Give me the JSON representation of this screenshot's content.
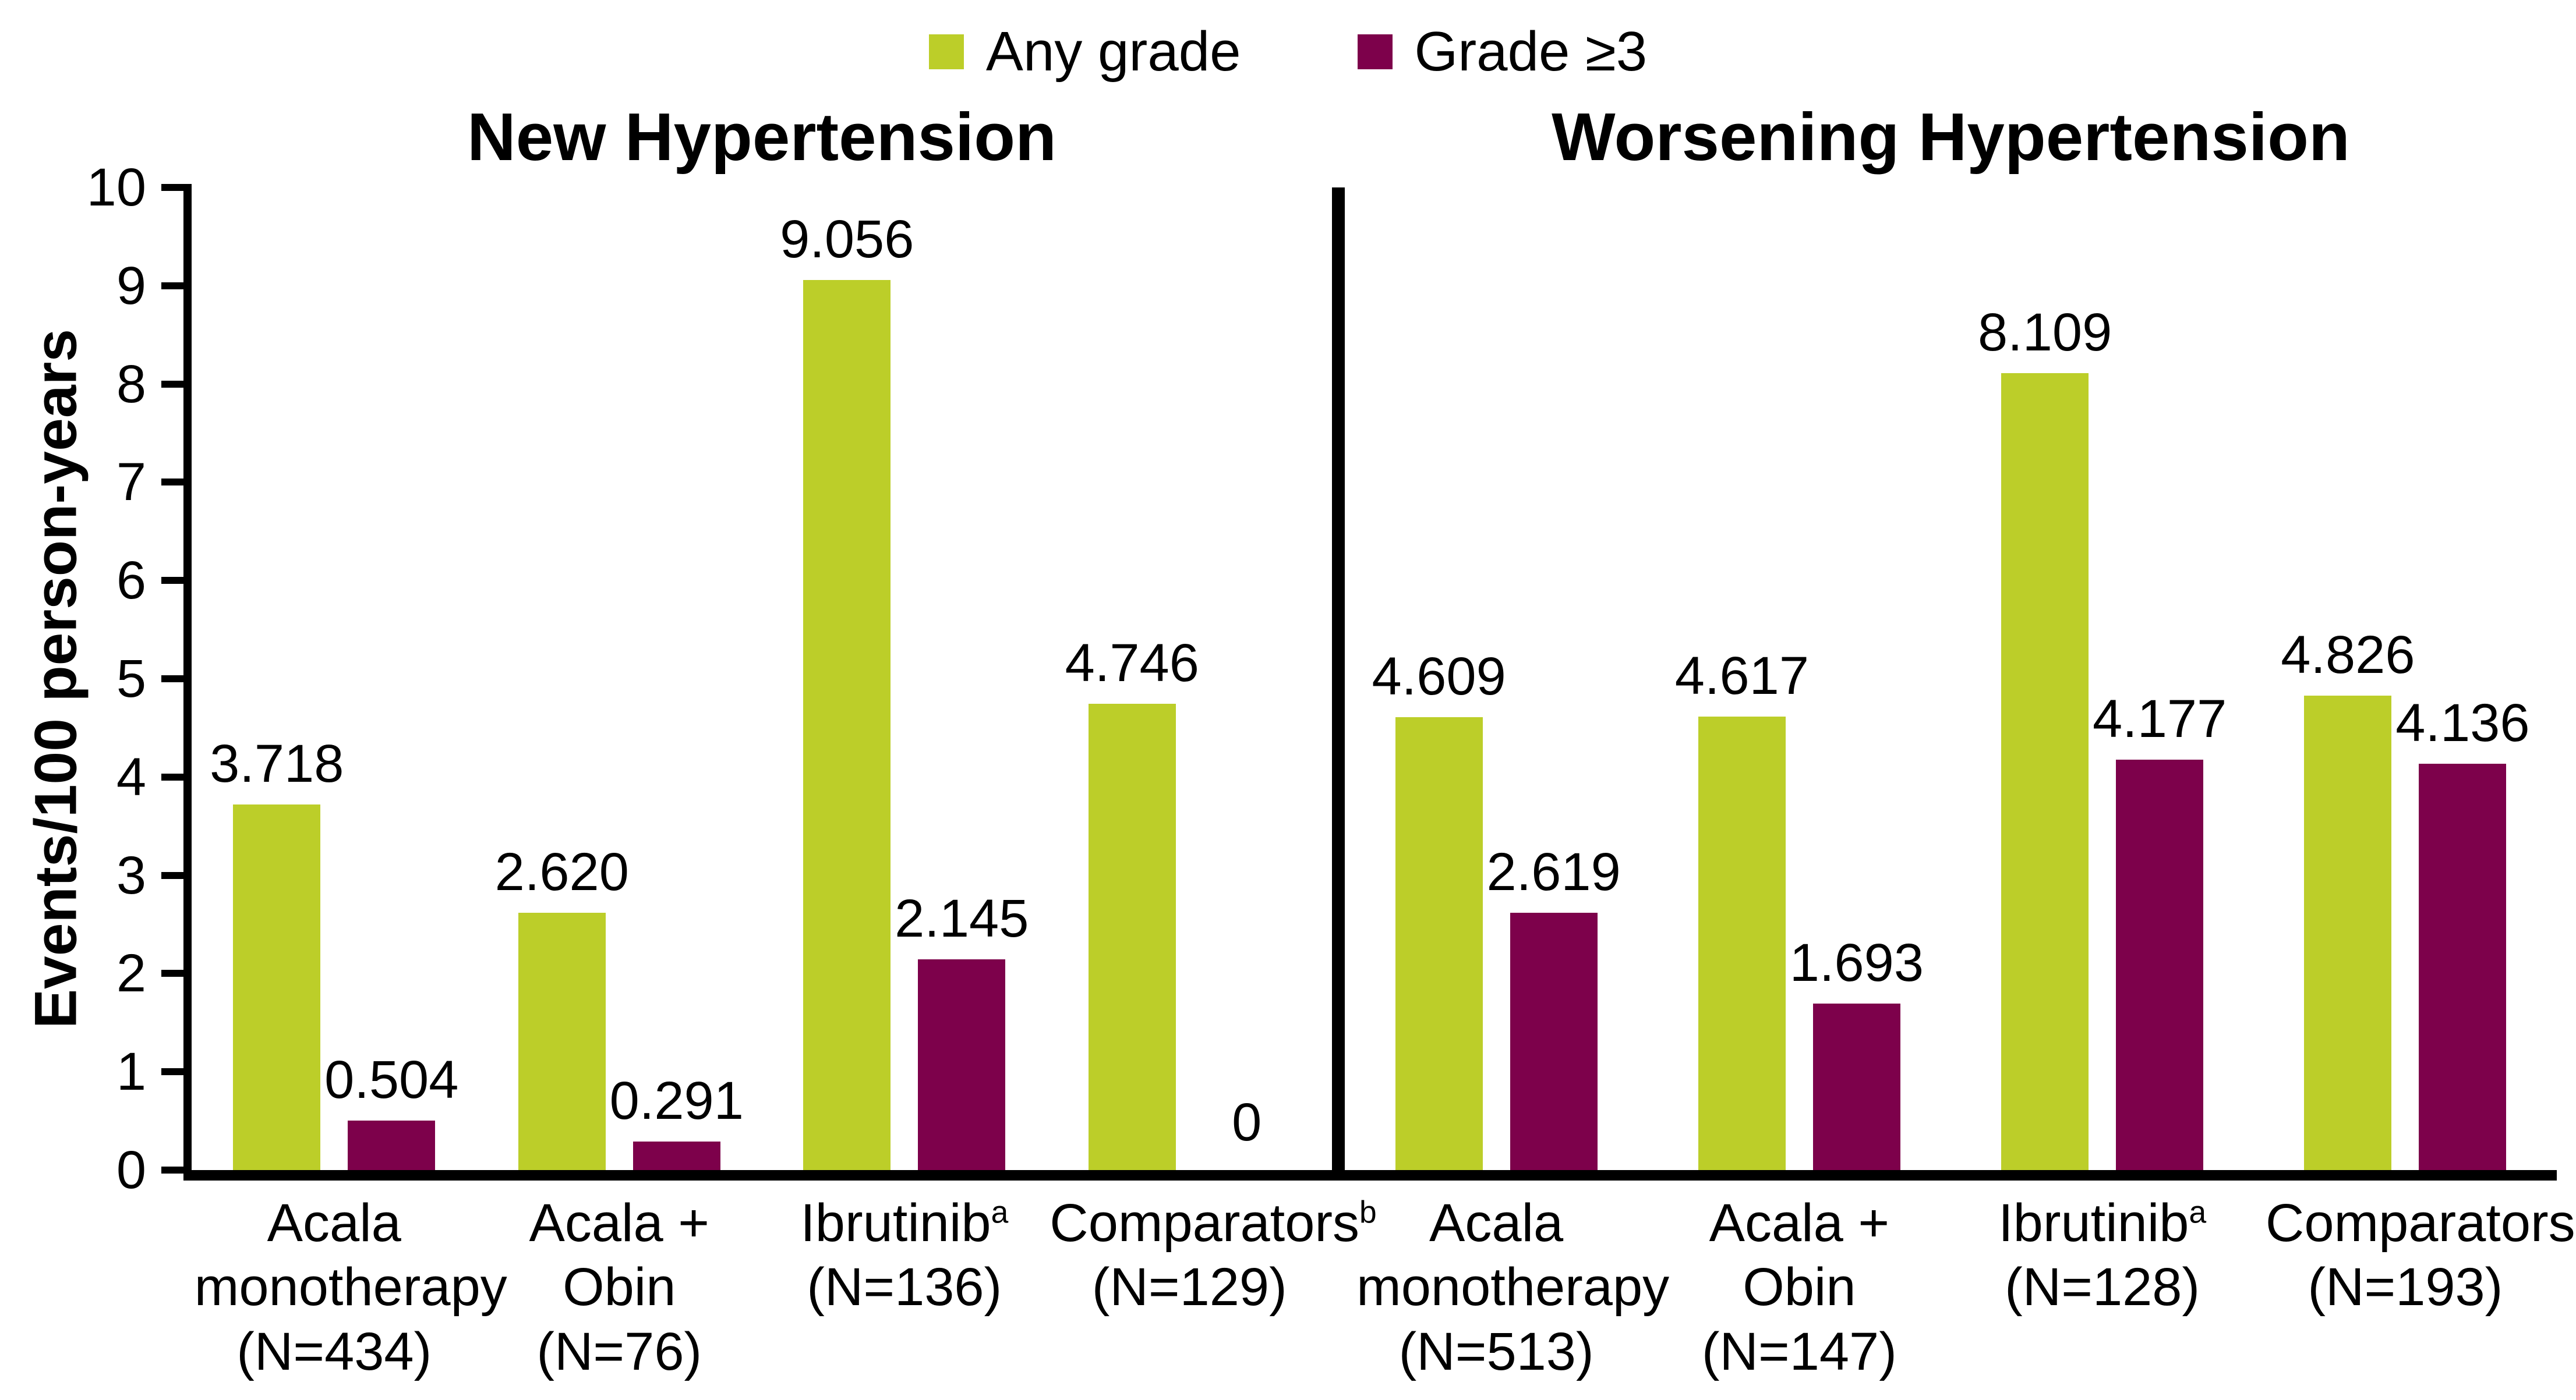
{
  "legend": {
    "items": [
      {
        "label": "Any grade",
        "color": "#bcce29"
      },
      {
        "label": "Grade ≥3",
        "color": "#7d014b"
      }
    ]
  },
  "y_axis": {
    "label": "Events/100 person-years",
    "min": 0,
    "max": 10,
    "tick_step": 1,
    "ticks": [
      0,
      1,
      2,
      3,
      4,
      5,
      6,
      7,
      8,
      9,
      10
    ]
  },
  "chart_data": {
    "type": "bar",
    "grid": false,
    "legend_position": "top-center",
    "ylim": [
      0,
      10
    ],
    "ylabel": "Events/100 person-years",
    "series": [
      {
        "key": "any_grade",
        "name": "Any grade",
        "color": "#bcce29"
      },
      {
        "key": "grade_ge3",
        "name": "Grade ≥3",
        "color": "#7d014b"
      }
    ],
    "panels": [
      {
        "title": "New Hypertension",
        "categories": [
          {
            "label_lines": [
              "Acala",
              "monotherapy",
              "(N=434)"
            ],
            "values": {
              "any_grade": 3.718,
              "grade_ge3": 0.504
            },
            "value_labels": {
              "any_grade": "3.718",
              "grade_ge3": "0.504"
            }
          },
          {
            "label_lines": [
              "Acala +",
              "Obin",
              "(N=76)"
            ],
            "values": {
              "any_grade": 2.62,
              "grade_ge3": 0.291
            },
            "value_labels": {
              "any_grade": "2.620",
              "grade_ge3": "0.291"
            }
          },
          {
            "label_lines": [
              "Ibrutinib^a",
              "(N=136)"
            ],
            "values": {
              "any_grade": 9.056,
              "grade_ge3": 2.145
            },
            "value_labels": {
              "any_grade": "9.056",
              "grade_ge3": "2.145"
            }
          },
          {
            "label_lines": [
              "Comparators^b",
              "(N=129)"
            ],
            "values": {
              "any_grade": 4.746,
              "grade_ge3": 0
            },
            "value_labels": {
              "any_grade": "4.746",
              "grade_ge3": "0"
            }
          }
        ]
      },
      {
        "title": "Worsening Hypertension",
        "categories": [
          {
            "label_lines": [
              "Acala",
              "monotherapy",
              "(N=513)"
            ],
            "values": {
              "any_grade": 4.609,
              "grade_ge3": 2.619
            },
            "value_labels": {
              "any_grade": "4.609",
              "grade_ge3": "2.619"
            }
          },
          {
            "label_lines": [
              "Acala +",
              "Obin",
              "(N=147)"
            ],
            "values": {
              "any_grade": 4.617,
              "grade_ge3": 1.693
            },
            "value_labels": {
              "any_grade": "4.617",
              "grade_ge3": "1.693"
            }
          },
          {
            "label_lines": [
              "Ibrutinib^a",
              "(N=128)"
            ],
            "values": {
              "any_grade": 8.109,
              "grade_ge3": 4.177
            },
            "value_labels": {
              "any_grade": "8.109",
              "grade_ge3": "4.177"
            }
          },
          {
            "label_lines": [
              "Comparators^b",
              "(N=193)"
            ],
            "values": {
              "any_grade": 4.826,
              "grade_ge3": 4.136
            },
            "value_labels": {
              "any_grade": "4.826",
              "grade_ge3": "4.136"
            }
          }
        ]
      }
    ]
  }
}
